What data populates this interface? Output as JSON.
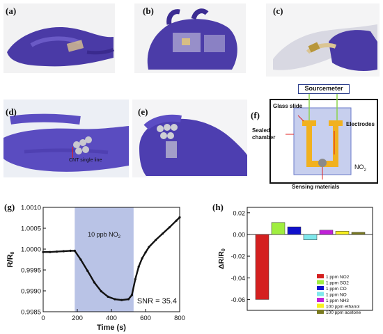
{
  "labels": {
    "a": "(a)",
    "b": "(b)",
    "c": "(c)",
    "d": "(d)",
    "e": "(e)",
    "f": "(f)",
    "g": "(g)",
    "h": "(h)"
  },
  "photo_d": {
    "annotation": "CNT single line"
  },
  "schematic": {
    "sourcemeter": "Sourcemeter",
    "glass_slide": "Glass slide",
    "electrodes": "Electrodes",
    "sealed_chamber_line1": "Sealed",
    "sealed_chamber_line2": "chamber",
    "gas_base": "NO",
    "gas_sub": "2",
    "sensing_materials": "Sensing materials"
  },
  "chart_data": [
    {
      "type": "line",
      "xlabel": "Time (s)",
      "ylabel_base": "R/R",
      "ylabel_sub": "0",
      "xlim": [
        0,
        800
      ],
      "ylim": [
        0.9985,
        1.001
      ],
      "xticks": [
        "0",
        "200",
        "400",
        "600",
        "800"
      ],
      "yticks": [
        "0.9985",
        "0.9990",
        "0.9995",
        "1.0000",
        "1.0005",
        "1.0010"
      ],
      "exposure_window": [
        185,
        530
      ],
      "exposure_label_base": "10 ppb NO",
      "exposure_label_sub": "2",
      "annotation": "SNR = 35.4",
      "series": [
        {
          "x": [
            0,
            40,
            80,
            120,
            160,
            185,
            220,
            260,
            300,
            340,
            380,
            420,
            460,
            500,
            520,
            540,
            560,
            580,
            600,
            620,
            660,
            700,
            740,
            780,
            800
          ],
          "y": [
            0.99993,
            0.99993,
            0.99994,
            0.99995,
            0.99996,
            0.99996,
            0.99975,
            0.99948,
            0.9992,
            0.99899,
            0.99886,
            0.9988,
            0.99878,
            0.9988,
            0.9989,
            0.99928,
            0.99958,
            0.99978,
            0.99992,
            1.00005,
            1.00022,
            1.00037,
            1.00052,
            1.00068,
            1.00076
          ]
        }
      ]
    },
    {
      "type": "bar",
      "ylabel_base": "ΔR/R",
      "ylabel_sub": "0",
      "ylim": [
        -0.07,
        0.025
      ],
      "yticks": [
        "0.02",
        "0.00",
        "-0.02",
        "-0.04",
        "-0.06"
      ],
      "categories": [
        "1 ppm NO2",
        "1 ppm SO2",
        "1 ppm CO",
        "1 ppm NO",
        "1 ppm NH3",
        "100 ppm ethanol",
        "100 ppm acetone"
      ],
      "values": [
        -0.06,
        0.011,
        0.007,
        -0.005,
        0.004,
        0.003,
        0.002
      ],
      "colors": [
        "#d42020",
        "#a0ee40",
        "#1010cc",
        "#7fe8ec",
        "#c020d8",
        "#f8f020",
        "#7a7a20"
      ],
      "legend_position": "bottom-right"
    }
  ]
}
